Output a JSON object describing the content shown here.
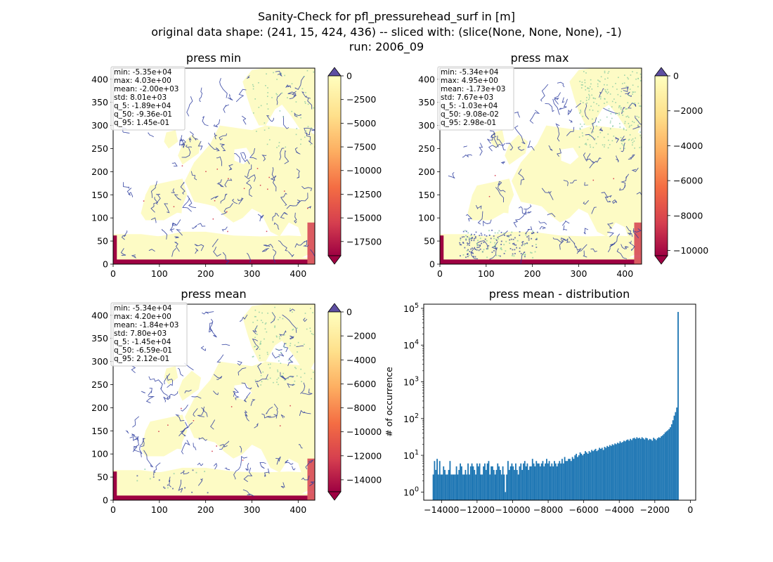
{
  "figure": {
    "title_lines": [
      "Sanity-Check for pfl_pressurehead_surf in [m]",
      "original data shape: (241, 15, 424, 436) -- sliced with: (slice(None, None, None), -1)",
      "run: 2006_09"
    ]
  },
  "colormap": {
    "name": "Spectral",
    "stops": [
      "#9e0142",
      "#d53e4f",
      "#f46d43",
      "#fdae61",
      "#fee08b",
      "#ffffbf"
    ],
    "over_color": "#5e4fa2",
    "river_color": "#2a3b9e",
    "green_color": "#7fc79f"
  },
  "chart_data": [
    {
      "type": "heatmap",
      "title": "press min",
      "xticks": [
        0,
        100,
        200,
        300,
        400
      ],
      "yticks": [
        0,
        50,
        100,
        150,
        200,
        250,
        300,
        350,
        400
      ],
      "xlim": [
        0,
        436
      ],
      "ylim": [
        0,
        424
      ],
      "vmin": -19000,
      "vmax": 0,
      "colorbar_ticks": [
        0,
        -2500,
        -5000,
        -7500,
        -10000,
        -12500,
        -15000,
        -17500
      ],
      "colorbar_tick_labels": [
        "0",
        "−2500",
        "−5000",
        "−7500",
        "−10000",
        "−12500",
        "−15000",
        "−17500"
      ],
      "stats": [
        "min: -5.35e+04",
        "max: 4.03e+00",
        "mean: -2.00e+03",
        "std: 8.01e+03",
        "q_5: -1.89e+04",
        "q_50: -9.36e-01",
        "q_95: 1.45e-01"
      ]
    },
    {
      "type": "heatmap",
      "title": "press max",
      "xticks": [
        0,
        100,
        200,
        300,
        400
      ],
      "yticks": [
        0,
        50,
        100,
        150,
        200,
        250,
        300,
        350,
        400
      ],
      "xlim": [
        0,
        436
      ],
      "ylim": [
        0,
        424
      ],
      "vmin": -10300,
      "vmax": 0,
      "colorbar_ticks": [
        0,
        -2000,
        -4000,
        -6000,
        -8000,
        -10000
      ],
      "colorbar_tick_labels": [
        "0",
        "−2000",
        "−4000",
        "−6000",
        "−8000",
        "−10000"
      ],
      "stats": [
        "min: -5.34e+04",
        "max: 4.95e+00",
        "mean: -1.73e+03",
        "std: 7.67e+03",
        "q_5: -1.03e+04",
        "q_50: -9.08e-02",
        "q_95: 2.98e-01"
      ]
    },
    {
      "type": "heatmap",
      "title": "press mean",
      "xticks": [
        0,
        100,
        200,
        300,
        400
      ],
      "yticks": [
        0,
        50,
        100,
        150,
        200,
        250,
        300,
        350,
        400
      ],
      "xlim": [
        0,
        436
      ],
      "ylim": [
        0,
        424
      ],
      "vmin": -15000,
      "vmax": 0,
      "colorbar_ticks": [
        0,
        -2000,
        -4000,
        -6000,
        -8000,
        -10000,
        -12000,
        -14000
      ],
      "colorbar_tick_labels": [
        "0",
        "−2000",
        "−4000",
        "−6000",
        "−8000",
        "−10000",
        "−12000",
        "−14000"
      ],
      "stats": [
        "min: -5.34e+04",
        "max: 4.20e+00",
        "mean: -1.84e+03",
        "std: 7.80e+03",
        "q_5: -1.45e+04",
        "q_50: -6.59e-01",
        "q_95: 2.12e-01"
      ]
    },
    {
      "type": "bar",
      "title": "press mean - distribution",
      "ylabel": "# of occurrence",
      "yscale": "log",
      "xlim": [
        -15000,
        300
      ],
      "ylim": [
        0.6,
        130000
      ],
      "bar_color": "#1f77b4",
      "xticks": [
        -14000,
        -12000,
        -10000,
        -8000,
        -6000,
        -4000,
        -2000,
        0
      ],
      "xtick_labels": [
        "−14000",
        "−12000",
        "−10000",
        "−8000",
        "−6000",
        "−4000",
        "−2000",
        "0"
      ],
      "yticks": [
        1,
        10,
        100,
        1000,
        10000,
        100000
      ],
      "ytick_labels": [
        "10|0",
        "10|1",
        "10|2",
        "10|3",
        "10|4",
        "10|5"
      ],
      "bin_start": -14500,
      "bin_width": 72.5,
      "counts": [
        3,
        7,
        4,
        8,
        3,
        7,
        3,
        3,
        5,
        4,
        3,
        3,
        4,
        7,
        3,
        3,
        3,
        3,
        5,
        3,
        4,
        6,
        5,
        3,
        3,
        4,
        3,
        6,
        3,
        5,
        6,
        5,
        4,
        3,
        6,
        5,
        6,
        3,
        3,
        5,
        6,
        4,
        6,
        7,
        3,
        5,
        5,
        4,
        3,
        4,
        6,
        5,
        4,
        3,
        5,
        3,
        1,
        3,
        7,
        4,
        5,
        6,
        5,
        4,
        6,
        4,
        3,
        5,
        6,
        4,
        6,
        7,
        5,
        6,
        4,
        5,
        5,
        8,
        6,
        5,
        7,
        6,
        6,
        5,
        6,
        7,
        5,
        6,
        8,
        6,
        7,
        5,
        6,
        5,
        7,
        6,
        5,
        6,
        7,
        6,
        8,
        6,
        9,
        7,
        7,
        8,
        8,
        7,
        9,
        8,
        10,
        11,
        9,
        10,
        12,
        11,
        10,
        11,
        13,
        12,
        11,
        13,
        12,
        14,
        13,
        14,
        15,
        13,
        14,
        16,
        15,
        16,
        14,
        17,
        16,
        18,
        17,
        19,
        18,
        20,
        19,
        21,
        20,
        22,
        21,
        24,
        22,
        23,
        25,
        24,
        26,
        27,
        25,
        28,
        26,
        29,
        30,
        28,
        31,
        29,
        30,
        28,
        31,
        29,
        27,
        30,
        29,
        26,
        28,
        27,
        25,
        30,
        28,
        26,
        29,
        31,
        30,
        33,
        35,
        38,
        42,
        45,
        48,
        52,
        58,
        70,
        90,
        120,
        150,
        200,
        80000
      ]
    }
  ]
}
